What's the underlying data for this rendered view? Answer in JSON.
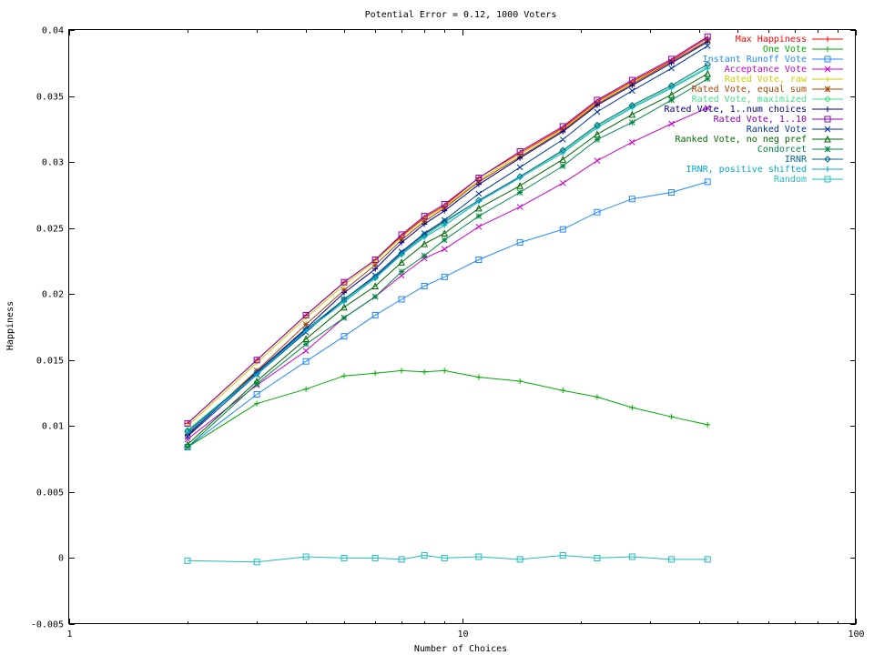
{
  "chart_data": {
    "type": "line",
    "title": "Potential Error = 0.12, 1000 Voters",
    "xlabel": "Number of Choices",
    "ylabel": "Happiness",
    "x_scale": "log",
    "xlim": [
      1,
      100
    ],
    "ylim": [
      -0.005,
      0.04
    ],
    "x_ticks": [
      1,
      10,
      100
    ],
    "y_ticks": [
      -0.005,
      0,
      0.005,
      0.01,
      0.015,
      0.02,
      0.025,
      0.03,
      0.035,
      0.04
    ],
    "y_tick_labels": [
      "-0.005",
      "0",
      "0.005",
      "0.01",
      "0.015",
      "0.02",
      "0.025",
      "0.03",
      "0.035",
      "0.04"
    ],
    "x_tick_labels": [
      "1",
      "10",
      "100"
    ],
    "grid": false,
    "legend_position": "top-right",
    "x": [
      2,
      3,
      4,
      5,
      6,
      7,
      8,
      9,
      11,
      14,
      18,
      22,
      27,
      34,
      42
    ],
    "series": [
      {
        "name": "Max Happiness",
        "color": "#ff0000",
        "marker": "plus",
        "values": [
          0.0102,
          0.015,
          0.0184,
          0.0209,
          0.0226,
          0.0244,
          0.0258,
          0.0267,
          0.0288,
          0.0307,
          0.0326,
          0.0346,
          0.0361,
          0.0377,
          0.0394
        ]
      },
      {
        "name": "One Vote",
        "color": "#00aa00",
        "marker": "plus",
        "values": [
          0.0084,
          0.0117,
          0.0128,
          0.0138,
          0.014,
          0.0142,
          0.0141,
          0.0142,
          0.0137,
          0.0134,
          0.0127,
          0.0122,
          0.0114,
          0.0107,
          0.0101
        ]
      },
      {
        "name": "Instant Runoff Vote",
        "color": "#2288ff",
        "marker": "square",
        "values": [
          0.0084,
          0.0124,
          0.0149,
          0.0168,
          0.0184,
          0.0196,
          0.0206,
          0.0213,
          0.0226,
          0.0239,
          0.0249,
          0.0262,
          0.0272,
          0.0277,
          0.0285
        ]
      },
      {
        "name": "Acceptance Vote",
        "color": "#cc00cc",
        "marker": "x",
        "values": [
          0.009,
          0.0131,
          0.0157,
          0.0182,
          0.0198,
          0.0214,
          0.0227,
          0.0234,
          0.0251,
          0.0266,
          0.0284,
          0.0301,
          0.0315,
          0.0329,
          0.0341
        ]
      },
      {
        "name": "Rated Vote, raw",
        "color": "#cccc00",
        "marker": "plus",
        "values": [
          0.01,
          0.0148,
          0.0182,
          0.0207,
          0.0225,
          0.0243,
          0.0257,
          0.0266,
          0.0286,
          0.0306,
          0.0325,
          0.0345,
          0.036,
          0.0376,
          0.0392
        ]
      },
      {
        "name": "Rated Vote, equal sum",
        "color": "#aa4400",
        "marker": "star",
        "values": [
          0.0094,
          0.0142,
          0.0177,
          0.0203,
          0.0222,
          0.0241,
          0.0255,
          0.0265,
          0.0285,
          0.0304,
          0.0324,
          0.0344,
          0.0359,
          0.0376,
          0.0392
        ]
      },
      {
        "name": "Rated Vote, maximized",
        "color": "#44dd88",
        "marker": "diamond",
        "values": [
          0.0097,
          0.014,
          0.0173,
          0.0195,
          0.0212,
          0.023,
          0.0244,
          0.0254,
          0.0271,
          0.0289,
          0.0308,
          0.0327,
          0.0342,
          0.0357,
          0.0372
        ]
      },
      {
        "name": "Rated Vote, 1..num choices",
        "color": "#000088",
        "marker": "plus",
        "values": [
          0.0093,
          0.0141,
          0.0174,
          0.0201,
          0.0219,
          0.0239,
          0.0253,
          0.0263,
          0.0283,
          0.0303,
          0.0323,
          0.0343,
          0.0358,
          0.0375,
          0.0391
        ]
      },
      {
        "name": "Rated Vote, 1..10",
        "color": "#8800aa",
        "marker": "square",
        "values": [
          0.0102,
          0.015,
          0.0184,
          0.0209,
          0.0226,
          0.0245,
          0.0259,
          0.0268,
          0.0288,
          0.0308,
          0.0327,
          0.0347,
          0.0362,
          0.0378,
          0.0395
        ]
      },
      {
        "name": "Ranked Vote",
        "color": "#003399",
        "marker": "x",
        "values": [
          0.0092,
          0.0139,
          0.0171,
          0.0196,
          0.0214,
          0.0232,
          0.0246,
          0.0256,
          0.0276,
          0.0296,
          0.0317,
          0.0338,
          0.0354,
          0.0371,
          0.0388
        ]
      },
      {
        "name": "Ranked Vote, no neg pref",
        "color": "#006600",
        "marker": "triangle",
        "values": [
          0.0086,
          0.0134,
          0.0166,
          0.019,
          0.0206,
          0.0224,
          0.0238,
          0.0246,
          0.0265,
          0.0282,
          0.0302,
          0.0321,
          0.0336,
          0.0351,
          0.0367
        ]
      },
      {
        "name": "Condorcet",
        "color": "#008844",
        "marker": "star",
        "values": [
          0.0084,
          0.0132,
          0.0162,
          0.0182,
          0.0198,
          0.0217,
          0.0229,
          0.0241,
          0.0259,
          0.0277,
          0.0297,
          0.0317,
          0.033,
          0.0347,
          0.0363
        ]
      },
      {
        "name": "IRNR",
        "color": "#006688",
        "marker": "diamond",
        "values": [
          0.0096,
          0.014,
          0.0173,
          0.0196,
          0.0213,
          0.0231,
          0.0245,
          0.0255,
          0.0271,
          0.0289,
          0.0309,
          0.0328,
          0.0343,
          0.0358,
          0.0374
        ]
      },
      {
        "name": "IRNR, positive shifted",
        "color": "#00aacc",
        "marker": "plus",
        "values": [
          0.0095,
          0.0139,
          0.0172,
          0.0194,
          0.0212,
          0.023,
          0.0243,
          0.0252,
          0.027,
          0.0288,
          0.0307,
          0.0326,
          0.0341,
          0.0356,
          0.0371
        ]
      },
      {
        "name": "Random",
        "color": "#22bbbb",
        "marker": "square",
        "values": [
          -0.0002,
          -0.0003,
          0.0001,
          0.0,
          0.0,
          -0.0001,
          0.0002,
          0.0,
          0.0001,
          -0.0001,
          0.0002,
          0.0,
          0.0001,
          -0.0001,
          -0.0001
        ]
      }
    ]
  }
}
